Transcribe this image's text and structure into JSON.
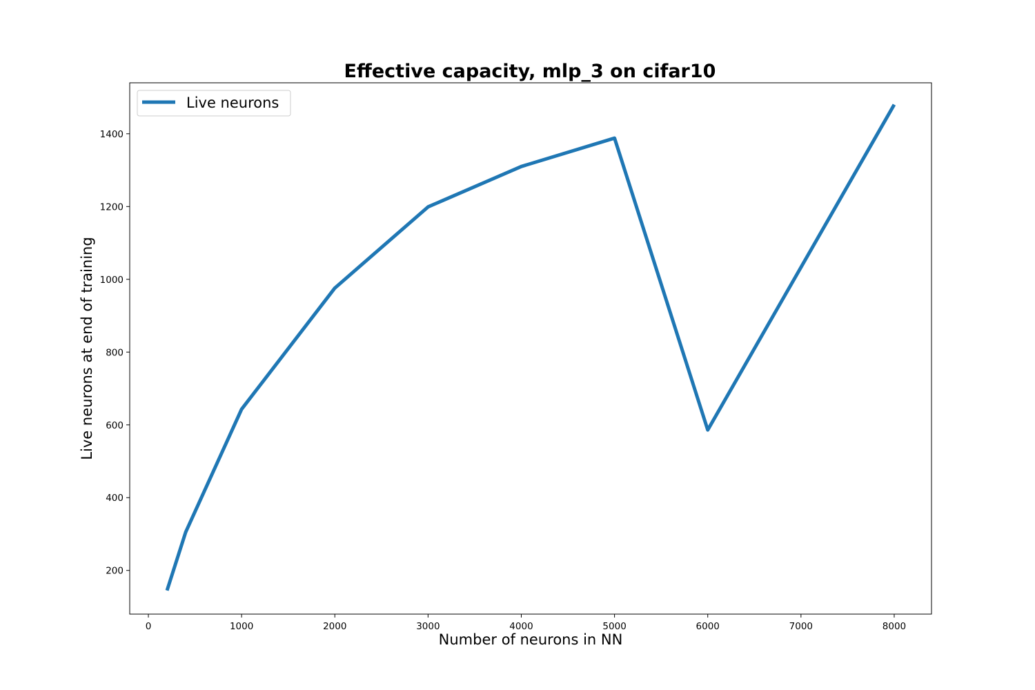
{
  "chart_data": {
    "type": "line",
    "title": "Effective capacity, mlp_3 on cifar10",
    "xlabel": "Number of neurons in NN",
    "ylabel": "Live neurons at end of training",
    "xlim": [
      -200,
      8400
    ],
    "ylim": [
      80,
      1540
    ],
    "xticks": [
      0,
      1000,
      2000,
      3000,
      4000,
      5000,
      6000,
      7000,
      8000
    ],
    "yticks": [
      200,
      400,
      600,
      800,
      1000,
      1200,
      1400
    ],
    "grid": false,
    "legend_position": "top-left",
    "series": [
      {
        "name": "Live neurons",
        "color": "#1f77b4",
        "x": [
          200,
          400,
          1000,
          2000,
          3000,
          4000,
          5000,
          6000,
          8000
        ],
        "y": [
          145,
          305,
          643,
          976,
          1199,
          1310,
          1388,
          586,
          1480
        ]
      }
    ]
  }
}
